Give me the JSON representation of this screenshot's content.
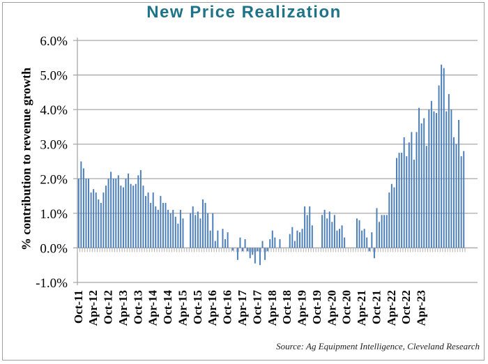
{
  "chart_data": {
    "type": "bar",
    "title": "New Price Realization",
    "xlabel": "",
    "ylabel": "% contribution to revenue growth",
    "source": "Source: Ag Equipment Intelligence, Cleveland Research",
    "ylim": [
      -1.0,
      6.0
    ],
    "yticks": [
      "-1.0%",
      "0.0%",
      "1.0%",
      "2.0%",
      "3.0%",
      "4.0%",
      "5.0%",
      "6.0%"
    ],
    "ytick_values": [
      -1,
      0,
      1,
      2,
      3,
      4,
      5,
      6
    ],
    "grid": true,
    "bar_color": "#4a7ebb",
    "title_color": "#1e7389",
    "x_tick_labels": [
      "Oct-11",
      "Apr-12",
      "Oct-12",
      "Apr-13",
      "Oct-13",
      "Apr-14",
      "Oct-14",
      "Apr-15",
      "Oct-15",
      "Apr-16",
      "Oct-16",
      "Apr-17",
      "Oct-17",
      "Apr-18",
      "Oct-18",
      "Apr-19",
      "Oct-19",
      "Apr-20",
      "Oct-20",
      "Apr-21",
      "Oct-21",
      "Apr-22",
      "Oct-22",
      "Apr-23"
    ],
    "x_tick_every_months": 6,
    "start_month": "Oct-11",
    "end_month": "Jun-23",
    "series": [
      {
        "name": "New Price Realization",
        "values": [
          2.0,
          2.5,
          2.3,
          2.0,
          2.0,
          1.6,
          1.7,
          1.6,
          1.4,
          1.3,
          1.6,
          1.8,
          2.0,
          2.2,
          2.0,
          2.0,
          2.1,
          1.8,
          1.75,
          2.0,
          2.15,
          1.85,
          1.8,
          1.85,
          2.1,
          2.25,
          1.8,
          1.5,
          1.6,
          1.3,
          1.6,
          1.2,
          1.1,
          1.5,
          1.3,
          1.3,
          1.1,
          1.0,
          1.1,
          0.9,
          0.7,
          1.1,
          0.85,
          0.0,
          0.0,
          1.0,
          1.2,
          0.95,
          1.05,
          0.85,
          1.4,
          1.3,
          1.0,
          0.5,
          1.0,
          0.2,
          0.5,
          0.0,
          0.55,
          0.25,
          0.45,
          0.0,
          -0.08,
          0.0,
          -0.35,
          0.3,
          -0.1,
          0.25,
          -0.1,
          -0.3,
          -0.2,
          -0.45,
          -0.1,
          -0.5,
          0.2,
          -0.35,
          -0.1,
          0.25,
          0.5,
          0.3,
          0.0,
          0.25,
          0.0,
          0.0,
          0.0,
          0.4,
          0.6,
          0.2,
          0.5,
          0.45,
          0.55,
          1.2,
          0.95,
          1.2,
          0.65,
          0.0,
          0.0,
          0.0,
          0.95,
          1.1,
          0.85,
          1.05,
          0.75,
          0.95,
          0.5,
          0.55,
          0.65,
          0.3,
          0.0,
          0.0,
          0.0,
          0.0,
          0.85,
          0.8,
          0.5,
          0.55,
          0.3,
          -0.1,
          0.45,
          -0.3,
          1.15,
          0.75,
          0.95,
          0.95,
          0.95,
          1.6,
          1.85,
          1.75,
          2.6,
          2.75,
          2.75,
          3.2,
          2.65,
          3.05,
          3.35,
          2.55,
          3.35,
          4.05,
          3.6,
          3.75,
          2.95,
          4.0,
          4.25,
          3.95,
          3.9,
          4.7,
          5.3,
          5.2,
          3.95,
          4.45,
          4.0,
          3.2,
          3.0,
          3.7,
          2.65,
          2.8
        ]
      }
    ]
  }
}
